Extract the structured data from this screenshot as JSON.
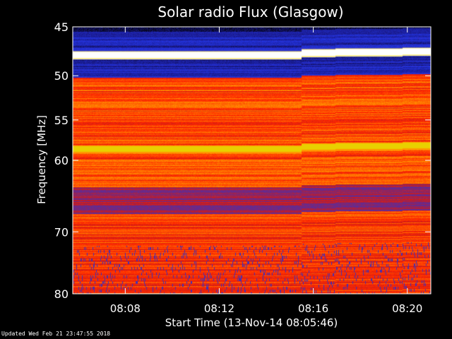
{
  "chart_data": {
    "type": "heatmap",
    "title": "Solar radio Flux (Glasgow)",
    "ylabel": "Frequency [MHz]",
    "xlabel": "Start Time (13-Nov-14 08:05:46)",
    "y_scale": "log",
    "ylim": [
      45,
      80
    ],
    "xlim": [
      "08:05:46",
      "08:21:00"
    ],
    "y_ticks": [
      45,
      50,
      55,
      60,
      70,
      80
    ],
    "x_ticks": [
      "08:08",
      "08:12",
      "08:16",
      "08:20"
    ],
    "colormap": [
      "#000000",
      "#1a1a8c",
      "#2233dd",
      "#6a2a8a",
      "#cc1a1a",
      "#ff2a00",
      "#ff6a00",
      "#ffaa00",
      "#ffff66",
      "#ffffff"
    ],
    "bright_bands": [
      {
        "start_mhz": 48.2,
        "end_mhz": 47.5,
        "level": "saturated"
      },
      {
        "start_mhz": 59.0,
        "end_mhz": 58.2,
        "level": "high"
      }
    ],
    "frequency_shift_time": "08:15:30"
  },
  "footer": {
    "updated": "Updated Wed Feb 21 23:47:55 2018"
  }
}
